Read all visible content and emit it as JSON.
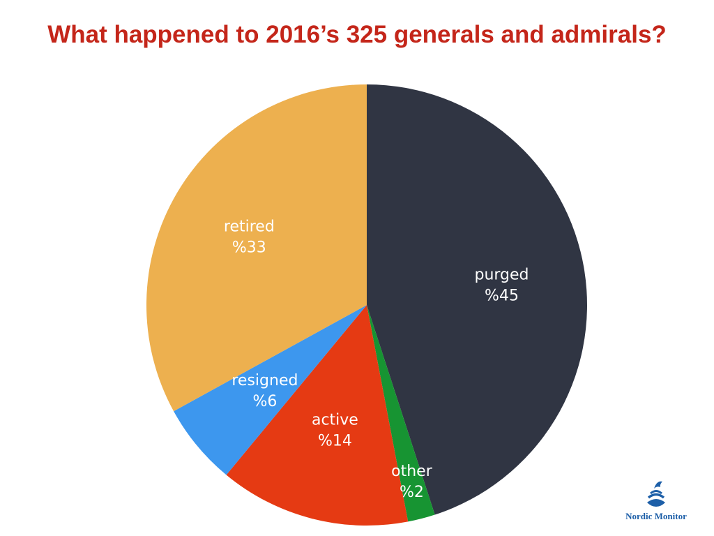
{
  "title": "What happened to 2016’s 325 generals and admirals?",
  "chart_data": {
    "type": "pie",
    "title": "What happened to 2016’s 325 generals and admirals?",
    "slices": [
      {
        "name": "purged",
        "label": "purged",
        "value_label": "%45",
        "value": 45,
        "color": "#303543"
      },
      {
        "name": "other",
        "label": "other",
        "value_label": "%2",
        "value": 2,
        "color": "#179432"
      },
      {
        "name": "active",
        "label": "active",
        "value_label": "%14",
        "value": 14,
        "color": "#e53a13"
      },
      {
        "name": "resigned",
        "label": "resigned",
        "value_label": "%6",
        "value": 6,
        "color": "#3d97ee"
      },
      {
        "name": "retired",
        "label": "retired",
        "value_label": "%33",
        "value": 33,
        "color": "#edb04f"
      }
    ],
    "legend": "none"
  },
  "logo": {
    "text": "Nordic Monitor",
    "color": "#1d5fa8"
  }
}
